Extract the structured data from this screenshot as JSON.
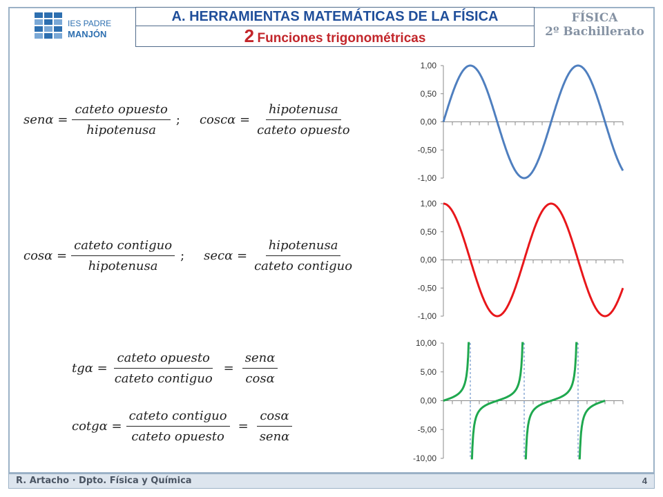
{
  "logo": {
    "line1": "IES PADRE",
    "line2": "MANJÓN"
  },
  "header": {
    "title": "A. HERRAMIENTAS MATEMÁTICAS DE LA FÍSICA",
    "number": "2",
    "subtitle": "Funciones trigonométricas"
  },
  "badge": {
    "subject": "FÍSICA",
    "level": "2º Bachillerato"
  },
  "equations": {
    "sen": {
      "lhs": "senα =",
      "num": "cateto opuesto",
      "den": "hipotenusa",
      "sep": ";"
    },
    "cosc": {
      "lhs": "coscα =",
      "num": "hipotenusa",
      "den": "cateto opuesto"
    },
    "cos": {
      "lhs": "cosα =",
      "num": "cateto contiguo",
      "den": "hipotenusa",
      "sep": ";"
    },
    "sec": {
      "lhs": "secα =",
      "num": "hipotenusa",
      "den": "cateto contiguo"
    },
    "tg": {
      "lhs": "tgα =",
      "num": "cateto opuesto",
      "den": "cateto contiguo",
      "eq": "=",
      "num2": "senα",
      "den2": "cosα"
    },
    "cotg": {
      "lhs": "cotgα =",
      "num": "cateto contiguo",
      "den": "cateto opuesto",
      "eq": "=",
      "num2": "cosα",
      "den2": "senα"
    }
  },
  "chart_data": [
    {
      "type": "line",
      "function": "sin",
      "color": "#4f7fbf",
      "ylim": [
        -1,
        1
      ],
      "yticks": [
        "1,00",
        "0,50",
        "0,00",
        "-0,50",
        "-1,00"
      ],
      "x_start_deg": 0,
      "x_end_deg": 600
    },
    {
      "type": "line",
      "function": "cos",
      "color": "#e8171b",
      "ylim": [
        -1,
        1
      ],
      "yticks": [
        "1,00",
        "0,50",
        "0,00",
        "-0,50",
        "-1,00"
      ],
      "x_start_deg": 0,
      "x_end_deg": 600
    },
    {
      "type": "line",
      "function": "tan",
      "color": "#1fa84f",
      "ylim": [
        -10,
        10
      ],
      "yticks": [
        "10,00",
        "5,00",
        "0,00",
        "-5,00",
        "-10,00"
      ],
      "x_start_deg": 0,
      "x_end_deg": 600,
      "asymptotes_deg": [
        90,
        270,
        450
      ]
    }
  ],
  "footer": {
    "text": "R. Artacho · Dpto. Física y Química",
    "page": "4"
  }
}
